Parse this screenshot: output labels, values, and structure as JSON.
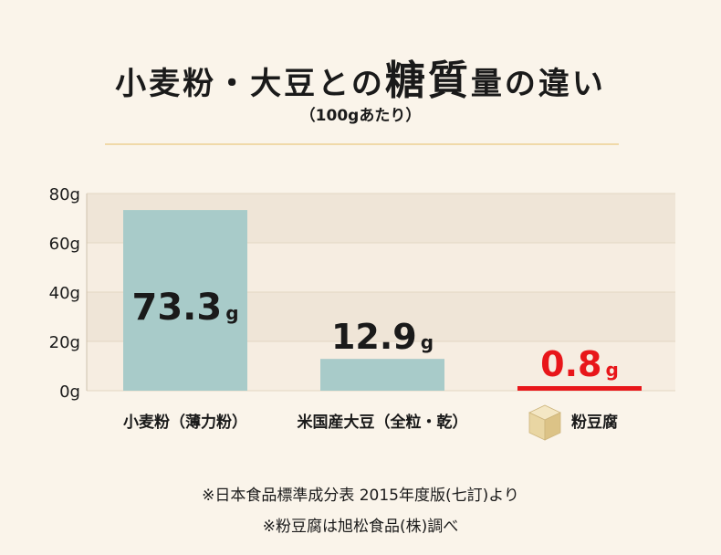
{
  "title": {
    "part1": "小麦粉・大豆との",
    "part2": "糖質",
    "part3": "量の違い"
  },
  "subtitle": "（100gあたり）",
  "footnotes": [
    "※日本食品標準成分表 2015年度版(七訂)より",
    "※粉豆腐は旭松食品(株)調べ"
  ],
  "colors": {
    "bar": "#a8cbc9",
    "highlight": "#e8161a",
    "band_light": "#f6ede1",
    "band_dark": "#efe5d7",
    "tofu_icon": "tofu-cube-icon"
  },
  "chart_data": {
    "type": "bar",
    "title": "小麦粉・大豆との糖質量の違い",
    "subtitle": "（100gあたり）",
    "categories": [
      "小麦粉（薄力粉）",
      "米国産大豆（全粒・乾）",
      "粉豆腐"
    ],
    "values": [
      73.3,
      12.9,
      0.8
    ],
    "value_labels": [
      "73.3",
      "12.9",
      "0.8"
    ],
    "unit": "g",
    "ylim": [
      0,
      80
    ],
    "yticks": [
      0,
      20,
      40,
      60,
      80
    ],
    "ytick_labels": [
      "0g",
      "20g",
      "40g",
      "60g",
      "80g"
    ],
    "grid": true,
    "highlight_index": 2
  }
}
